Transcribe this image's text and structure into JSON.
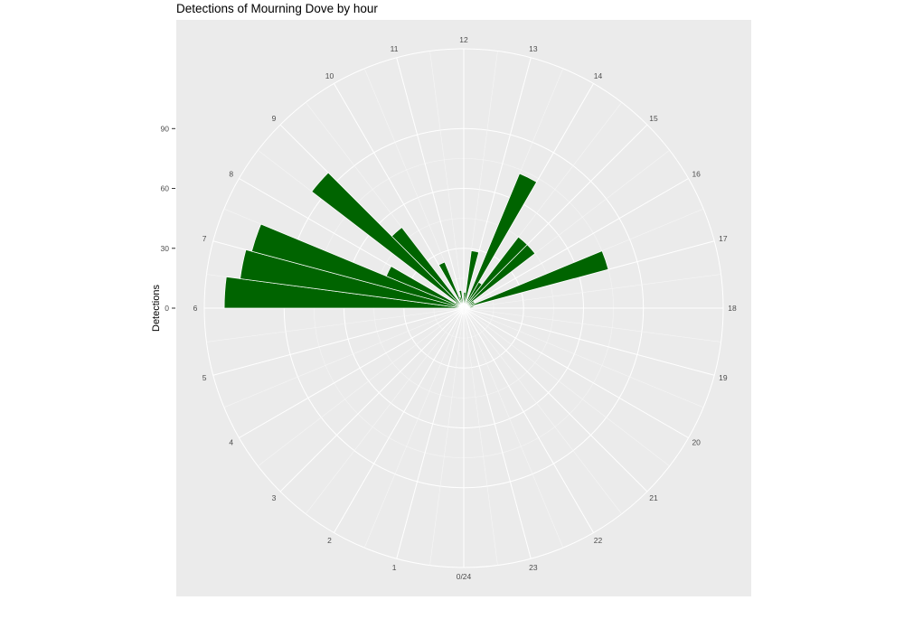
{
  "chart_data": {
    "type": "bar",
    "coord": "polar",
    "title": "Detections of Mourning Dove by hour",
    "xlabel": "",
    "ylabel": "Detections",
    "categories": [
      "0/24",
      "1",
      "2",
      "3",
      "4",
      "5",
      "6",
      "7",
      "8",
      "9",
      "10",
      "11",
      "12",
      "13",
      "14",
      "15",
      "16",
      "17",
      "18",
      "19",
      "20",
      "21",
      "22",
      "23"
    ],
    "hour_labels": [
      "0/24",
      "1",
      "2",
      "3",
      "4",
      "5",
      "6",
      "7",
      "8",
      "9",
      "10",
      "11",
      "12",
      "13",
      "14",
      "15",
      "16",
      "17",
      "18",
      "19",
      "20",
      "21",
      "22",
      "23"
    ],
    "bars": [
      {
        "x": 6.0,
        "value": 120
      },
      {
        "x": 6.5,
        "value": 113
      },
      {
        "x": 7.0,
        "value": 110
      },
      {
        "x": 7.5,
        "value": 42
      },
      {
        "x": 8.0,
        "value": 5
      },
      {
        "x": 8.5,
        "value": 96
      },
      {
        "x": 9.0,
        "value": 51
      },
      {
        "x": 10.0,
        "value": 25
      },
      {
        "x": 10.5,
        "value": 6
      },
      {
        "x": 11.0,
        "value": 9
      },
      {
        "x": 12.0,
        "value": 8
      },
      {
        "x": 12.5,
        "value": 29
      },
      {
        "x": 13.5,
        "value": 73
      },
      {
        "x": 14.0,
        "value": 15
      },
      {
        "x": 14.5,
        "value": 45
      },
      {
        "x": 15.0,
        "value": 45
      },
      {
        "x": 15.5,
        "value": 6
      },
      {
        "x": 16.0,
        "value": 6
      },
      {
        "x": 16.5,
        "value": 75
      },
      {
        "x": 17.0,
        "value": 5
      },
      {
        "x": 17.5,
        "value": 4
      },
      {
        "x": 18.0,
        "value": 3
      }
    ],
    "y_ticks": [
      0,
      30,
      60,
      90
    ],
    "ylim": [
      0,
      130
    ],
    "grid": true,
    "bar_color": "#006400",
    "panel_color": "#ebebeb"
  }
}
